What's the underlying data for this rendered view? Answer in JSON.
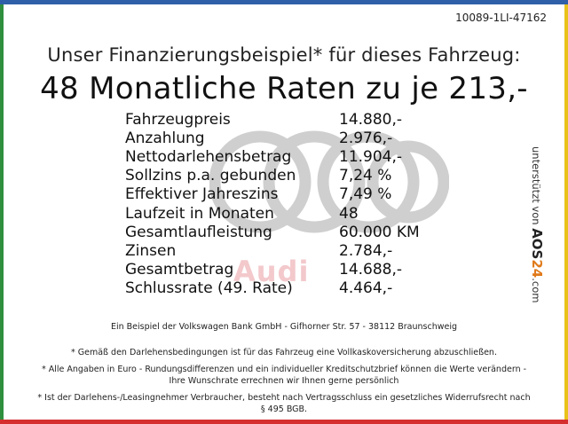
{
  "reference": "10089-1LI-47162",
  "subtitle": "Unser Finanzierungsbeispiel* für dieses Fahrzeug:",
  "headline": "48 Monatliche Raten zu je 213,-",
  "brand_watermark": "Audi",
  "terms": [
    {
      "label": "Fahrzeugpreis",
      "value": "14.880,-"
    },
    {
      "label": "Anzahlung",
      "value": "2.976,-"
    },
    {
      "label": "Nettodarlehensbetrag",
      "value": "11.904,-"
    },
    {
      "label": "Sollzins p.a. gebunden",
      "value": "7,24 %"
    },
    {
      "label": "Effektiver Jahreszins",
      "value": "7,49 %"
    },
    {
      "label": "Laufzeit in Monaten",
      "value": "48"
    },
    {
      "label": "Gesamtlaufleistung",
      "value": "60.000 KM"
    },
    {
      "label": "Zinsen",
      "value": "2.784,-"
    },
    {
      "label": "Gesamtbetrag",
      "value": "14.688,-"
    },
    {
      "label": "Schlussrate (49. Rate)",
      "value": "4.464,-"
    }
  ],
  "sidebar": {
    "prefix": "unterstützt von",
    "logo_left": "AOS",
    "logo_accent": "24",
    "logo_suffix": ".com"
  },
  "bank_line": "Ein Beispiel der Volkswagen Bank GmbH - Gifhorner Str. 57 - 38112 Braunschweig",
  "notes": [
    "* Gemäß den Darlehensbedingungen ist für das Fahrzeug eine Vollkaskoversicherung abzuschließen.",
    "* Alle Angaben in Euro - Rundungsdifferenzen und ein individueller Kreditschutzbrief können die Werte verändern - Ihre Wunschrate errechnen wir Ihnen gerne persönlich",
    "* Ist der Darlehens-/Leasingnehmer Verbraucher, besteht nach Vertragsschluss ein gesetzliches Widerrufsrecht nach § 495 BGB."
  ],
  "colors": {
    "top_bar": "#2f5fa8",
    "bottom_bar": "#d62f2f",
    "left_bar": "#2f8f3f",
    "right_bar": "#e8c21a",
    "rings": "#cfcfcf",
    "watermark": "#f3c9cc"
  }
}
